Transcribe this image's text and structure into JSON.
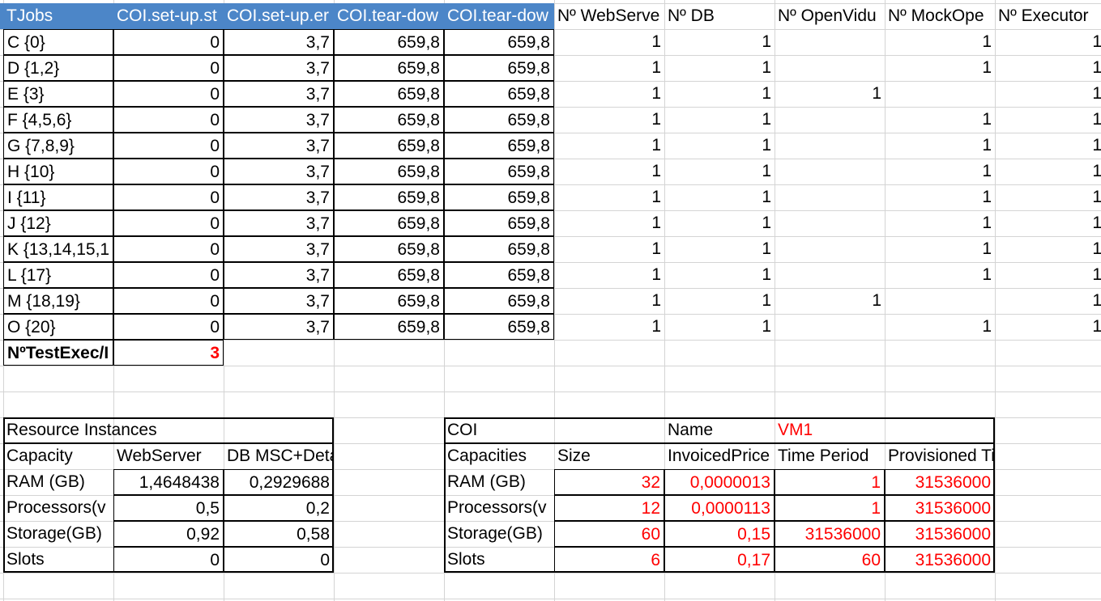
{
  "tjobs_table": {
    "headers": [
      "TJobs",
      "COI.set-up.st",
      "COI.set-up.er",
      "COI.tear-dow",
      "COI.tear-dow",
      "Nº WebServe",
      "Nº DB",
      "Nº OpenVidu",
      "Nº MockOpe",
      "Nº Executor"
    ],
    "rows": [
      [
        "C {0}",
        "0",
        "3,7",
        "659,8",
        "659,8",
        "1",
        "1",
        "",
        "1",
        "1"
      ],
      [
        "D {1,2}",
        "0",
        "3,7",
        "659,8",
        "659,8",
        "1",
        "1",
        "",
        "1",
        "1"
      ],
      [
        "E {3}",
        "0",
        "3,7",
        "659,8",
        "659,8",
        "1",
        "1",
        "1",
        "",
        "1"
      ],
      [
        "F {4,5,6}",
        "0",
        "3,7",
        "659,8",
        "659,8",
        "1",
        "1",
        "",
        "1",
        "1"
      ],
      [
        "G {7,8,9}",
        "0",
        "3,7",
        "659,8",
        "659,8",
        "1",
        "1",
        "",
        "1",
        "1"
      ],
      [
        "H {10}",
        "0",
        "3,7",
        "659,8",
        "659,8",
        "1",
        "1",
        "",
        "1",
        "1"
      ],
      [
        "I {11}",
        "0",
        "3,7",
        "659,8",
        "659,8",
        "1",
        "1",
        "",
        "1",
        "1"
      ],
      [
        "J {12}",
        "0",
        "3,7",
        "659,8",
        "659,8",
        "1",
        "1",
        "",
        "1",
        "1"
      ],
      [
        "K {13,14,15,1",
        "0",
        "3,7",
        "659,8",
        "659,8",
        "1",
        "1",
        "",
        "1",
        "1"
      ],
      [
        "L {17}",
        "0",
        "3,7",
        "659,8",
        "659,8",
        "1",
        "1",
        "",
        "1",
        "1"
      ],
      [
        "M {18,19}",
        "0",
        "3,7",
        "659,8",
        "659,8",
        "1",
        "1",
        "1",
        "",
        "1"
      ],
      [
        "O {20}",
        "0",
        "3,7",
        "659,8",
        "659,8",
        "1",
        "1",
        "",
        "1",
        "1"
      ]
    ],
    "footer_label": "NºTestExec/I",
    "footer_value": "3"
  },
  "resource_instances": {
    "title": "Resource Instances",
    "headers": [
      "Capacity",
      "WebServer",
      "DB MSC+Details"
    ],
    "rows": [
      [
        "RAM (GB)",
        "1,4648438",
        "0,2929688"
      ],
      [
        "Processors(v",
        "0,5",
        "0,2"
      ],
      [
        "Storage(GB)",
        "0,92",
        "0,58"
      ],
      [
        "Slots",
        "0",
        "0"
      ]
    ]
  },
  "coi": {
    "title": "COI",
    "name_label": "Name",
    "name_value": "VM1",
    "headers": [
      "Capacities",
      "Size",
      "InvoicedPrice",
      "Time Period",
      "Provisioned Time"
    ],
    "rows": [
      [
        "RAM (GB)",
        "32",
        "0,0000013",
        "1",
        "31536000"
      ],
      [
        "Processors(v",
        "12",
        "0,0000113",
        "1",
        "31536000"
      ],
      [
        "Storage(GB)",
        "60",
        "0,15",
        "31536000",
        "31536000"
      ],
      [
        "Slots",
        "6",
        "0,17",
        "60",
        "31536000"
      ]
    ]
  },
  "colors": {
    "header_bg": "#4c86c8",
    "value_red": "#ff0000",
    "gridline": "#d4d4d4"
  }
}
